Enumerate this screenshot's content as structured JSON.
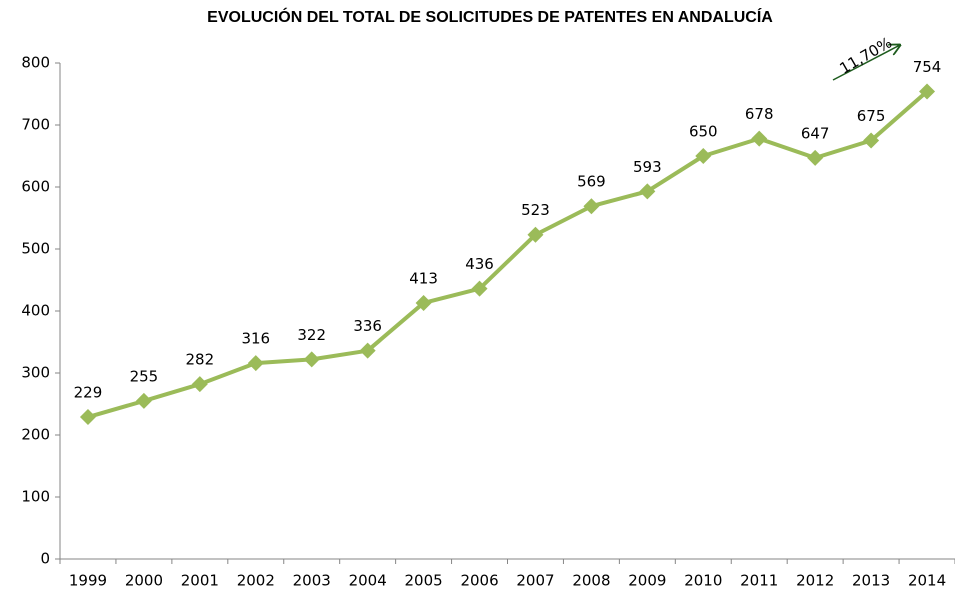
{
  "chart_data": {
    "type": "line",
    "title": "EVOLUCIÓN DEL TOTAL DE SOLICITUDES DE PATENTES EN ANDALUCÍA",
    "categories": [
      "1999",
      "2000",
      "2001",
      "2002",
      "2003",
      "2004",
      "2005",
      "2006",
      "2007",
      "2008",
      "2009",
      "2010",
      "2011",
      "2012",
      "2013",
      "2014"
    ],
    "values": [
      229,
      255,
      282,
      316,
      322,
      336,
      413,
      436,
      523,
      569,
      593,
      650,
      678,
      647,
      675,
      754
    ],
    "color": "#9bbb59",
    "ylim": [
      0,
      800
    ],
    "yticks": [
      0,
      100,
      200,
      300,
      400,
      500,
      600,
      700,
      800
    ],
    "grid": false,
    "annotation": "11,70%"
  }
}
